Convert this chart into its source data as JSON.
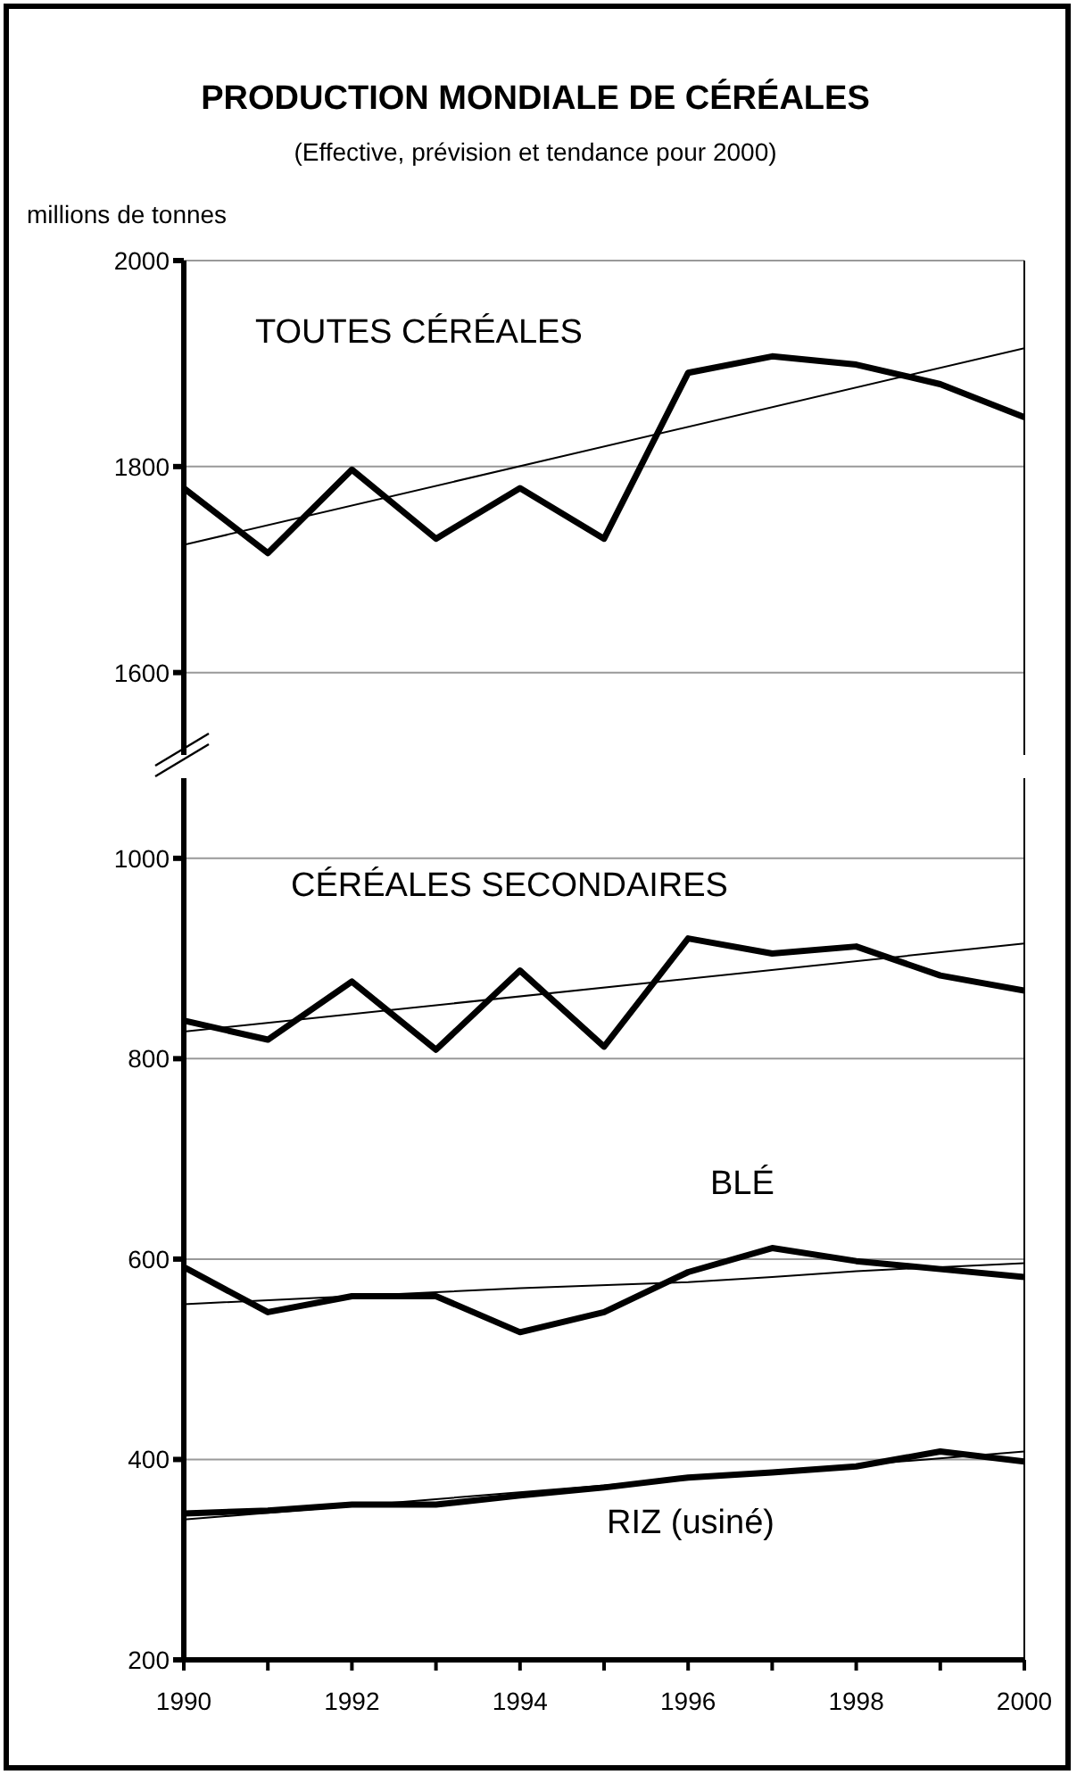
{
  "chart_data": [
    {
      "type": "line",
      "title": "PRODUCTION MONDIALE DE CÉRÉALES",
      "subtitle": "(Effective, prévision et tendance pour 2000)",
      "ylabel": "millions de tonnes",
      "xlim": [
        1990,
        2000
      ],
      "ylim": [
        1520,
        2000
      ],
      "yticks": [
        1600,
        1800,
        2000
      ],
      "grid": "y",
      "marker": "none",
      "tick_labels": "y",
      "series": [
        {
          "name": "TOUTES CÉRÉALES",
          "color": "#000000",
          "x": [
            1990,
            1991,
            1992,
            1993,
            1994,
            1995,
            1996,
            1997,
            1998,
            1999,
            2000
          ],
          "values": [
            1779,
            1716,
            1797,
            1730,
            1779,
            1730,
            1891,
            1907,
            1899,
            1880,
            1848
          ]
        },
        {
          "color": "#000000",
          "x": [
            1990,
            2000
          ],
          "values": [
            1724,
            1915
          ]
        }
      ]
    },
    {
      "type": "line",
      "xlim": [
        1990,
        2000
      ],
      "xticks": [
        1990,
        {
          "value": 1991,
          "label": null
        },
        1992,
        {
          "value": 1993,
          "label": null
        },
        1994,
        {
          "value": 1995,
          "label": null
        },
        1996,
        {
          "value": 1997,
          "label": null
        },
        1998,
        {
          "value": 1999,
          "label": null
        },
        2000
      ],
      "ylim": [
        200,
        1080
      ],
      "yticks": [
        200,
        400,
        600,
        800,
        1000
      ],
      "grid": "y",
      "marker": "none",
      "series": [
        {
          "name": "CÉRÉALES SECONDAIRES",
          "color": "#000000",
          "x": [
            1990,
            1991,
            1992,
            1993,
            1994,
            1995,
            1996,
            1997,
            1998,
            1999,
            2000
          ],
          "values": [
            838,
            819,
            877,
            809,
            888,
            812,
            920,
            905,
            912,
            883,
            868
          ]
        },
        {
          "color": "#000000",
          "x": [
            1990,
            2000
          ],
          "values": [
            827,
            915
          ]
        },
        {
          "name": "BLÉ",
          "color": "#000000",
          "x": [
            1990,
            1991,
            1992,
            1993,
            1994,
            1995,
            1996,
            1997,
            1998,
            1999,
            2000
          ],
          "values": [
            592,
            547,
            563,
            563,
            527,
            547,
            587,
            611,
            598,
            590,
            582
          ]
        },
        {
          "color": "#000000",
          "x": [
            1990,
            1992,
            1994,
            1996,
            1997,
            1998,
            2000
          ],
          "values": [
            555,
            563,
            571,
            577,
            582,
            588,
            596
          ]
        },
        {
          "name": "RIZ (usiné)",
          "color": "#000000",
          "x": [
            1990,
            1991,
            1992,
            1993,
            1994,
            1995,
            1996,
            1997,
            1998,
            1999,
            2000
          ],
          "values": [
            346,
            349,
            355,
            355,
            364,
            372,
            382,
            387,
            393,
            408,
            398
          ]
        },
        {
          "color": "#000000",
          "x": [
            1990,
            2000
          ],
          "values": [
            340,
            408
          ]
        }
      ]
    }
  ]
}
